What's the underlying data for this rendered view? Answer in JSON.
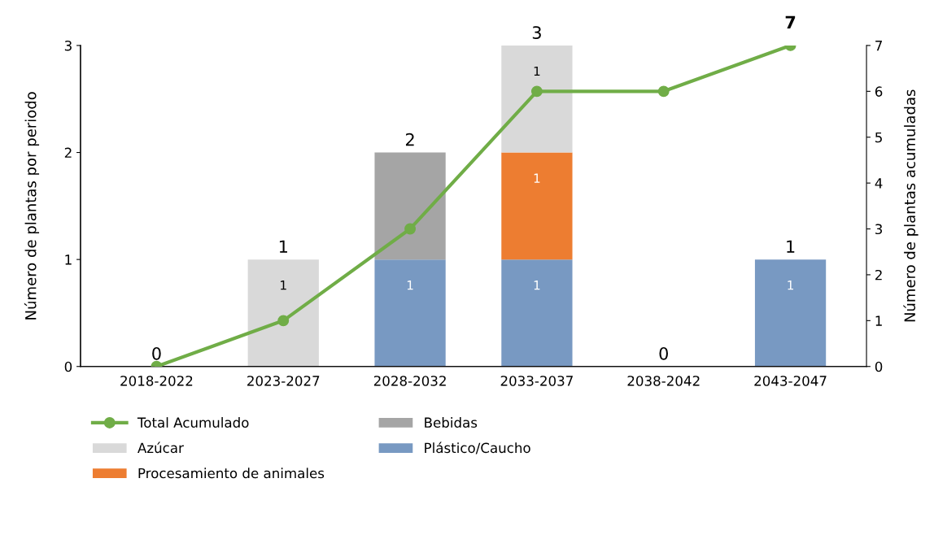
{
  "chart_data": {
    "type": "bar",
    "stacked": true,
    "categories": [
      "2018-2022",
      "2023-2027",
      "2028-2032",
      "2033-2037",
      "2038-2042",
      "2043-2047"
    ],
    "ylabel": "Número de plantas por periodo",
    "y2label": "Número de plantas acumuladas",
    "ylim": [
      0,
      3
    ],
    "yticks": [
      0,
      1,
      2,
      3
    ],
    "y2lim": [
      0,
      7
    ],
    "y2ticks": [
      0,
      1,
      2,
      3,
      4,
      5,
      6,
      7
    ],
    "grid": false,
    "legend": "bottom",
    "marker": "circle",
    "totals": [
      "0",
      "1",
      "2",
      "3",
      "0",
      "1"
    ],
    "series": [
      {
        "name": "Plástico/Caucho",
        "color": "#7899c2",
        "values": [
          0,
          0,
          1,
          1,
          0,
          1
        ],
        "value_labels": [
          null,
          null,
          "1",
          "1",
          null,
          "1"
        ]
      },
      {
        "name": "Bebidas",
        "color": "#a5a5a5",
        "values": [
          0,
          0,
          1,
          0,
          0,
          0
        ]
      },
      {
        "name": "Procesamiento de animales",
        "color": "#ed7d31",
        "values": [
          0,
          0,
          0,
          1,
          0,
          0
        ],
        "value_labels": [
          null,
          null,
          null,
          "1",
          null,
          null
        ]
      },
      {
        "name": "Azúcar",
        "color": "#d9d9d9",
        "values": [
          0,
          1,
          0,
          1,
          0,
          0
        ],
        "value_labels": [
          null,
          "1",
          null,
          "1",
          null,
          null
        ]
      },
      {
        "name": "Total Acumulado",
        "type": "line",
        "axis": "y2",
        "color": "#70ad47",
        "values": [
          0,
          1,
          3,
          6,
          6,
          7
        ],
        "value_labels": [
          null,
          null,
          null,
          null,
          null,
          "7"
        ]
      }
    ]
  }
}
